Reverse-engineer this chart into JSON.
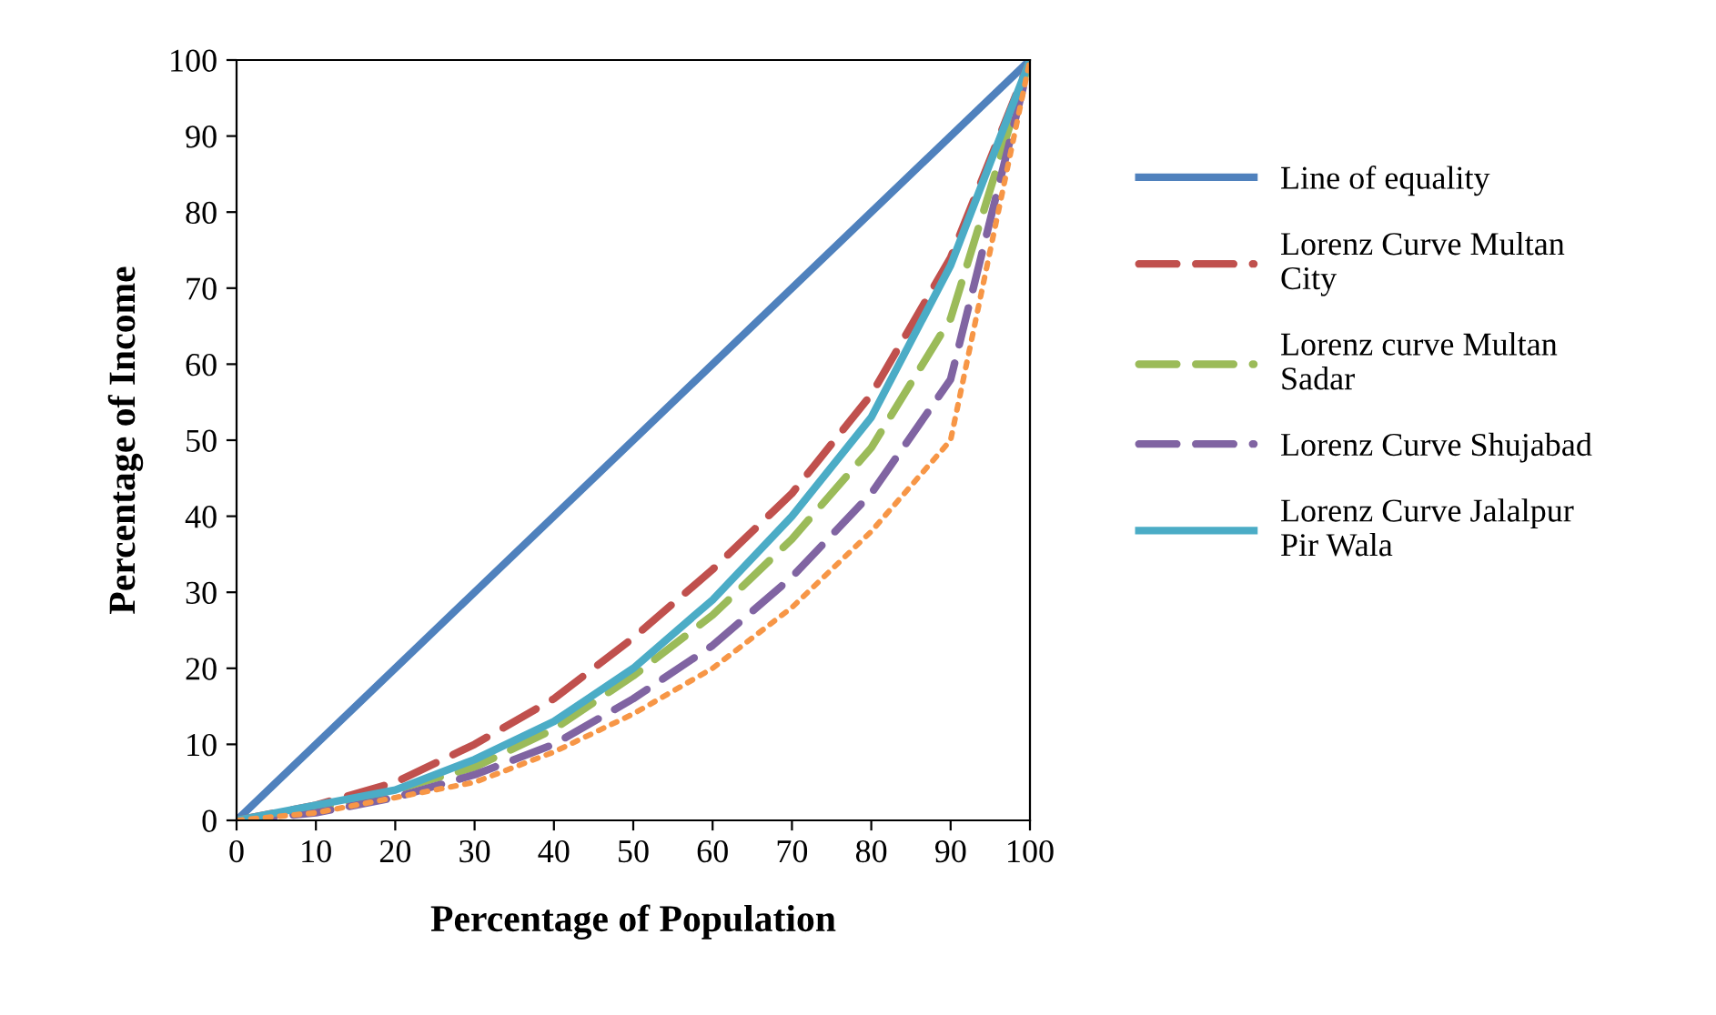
{
  "chart_data": {
    "type": "line",
    "xlabel": "Percentage of Population",
    "ylabel": "Percentage of Income",
    "x": [
      0,
      10,
      20,
      30,
      40,
      50,
      60,
      70,
      80,
      90,
      100
    ],
    "series": [
      {
        "name": "Line of equality",
        "color": "#4f81bd",
        "line_style": "solid",
        "x": [
          0,
          100
        ],
        "values": [
          0,
          100
        ]
      },
      {
        "name": "Lorenz Curve Multan City",
        "color": "#c0504d",
        "line_style": "dashed",
        "values": [
          0,
          2,
          5,
          10,
          16,
          24,
          33,
          43,
          56,
          74,
          100
        ]
      },
      {
        "name": "Lorenz curve Multan Sadar",
        "color": "#9bbb59",
        "line_style": "dashed",
        "values": [
          0,
          1.5,
          4,
          7,
          12,
          19,
          27,
          37,
          49,
          66,
          100
        ]
      },
      {
        "name": "Lorenz Curve Shujabad",
        "color": "#8064a2",
        "line_style": "dashed",
        "values": [
          0,
          1,
          3,
          6,
          10,
          16,
          23,
          32,
          43,
          58,
          100
        ]
      },
      {
        "name": "Lorenz Curve Jalalpur Pir Wala",
        "color": "#4bacc6",
        "line_style": "solid",
        "values": [
          0,
          2,
          4,
          8,
          13,
          20,
          29,
          40,
          53,
          73,
          100
        ]
      },
      {
        "color": "#f79646",
        "line_style": "dotted",
        "values": [
          0,
          1,
          3,
          5,
          9,
          14,
          20,
          28,
          38,
          50,
          100
        ]
      }
    ],
    "xlim": [
      0,
      100
    ],
    "ylim": [
      0,
      100
    ],
    "xticks": [
      0,
      10,
      20,
      30,
      40,
      50,
      60,
      70,
      80,
      90,
      100
    ],
    "yticks": [
      0,
      10,
      20,
      30,
      40,
      50,
      60,
      70,
      80,
      90,
      100
    ],
    "grid": false,
    "legend": "right",
    "marker": "none"
  }
}
